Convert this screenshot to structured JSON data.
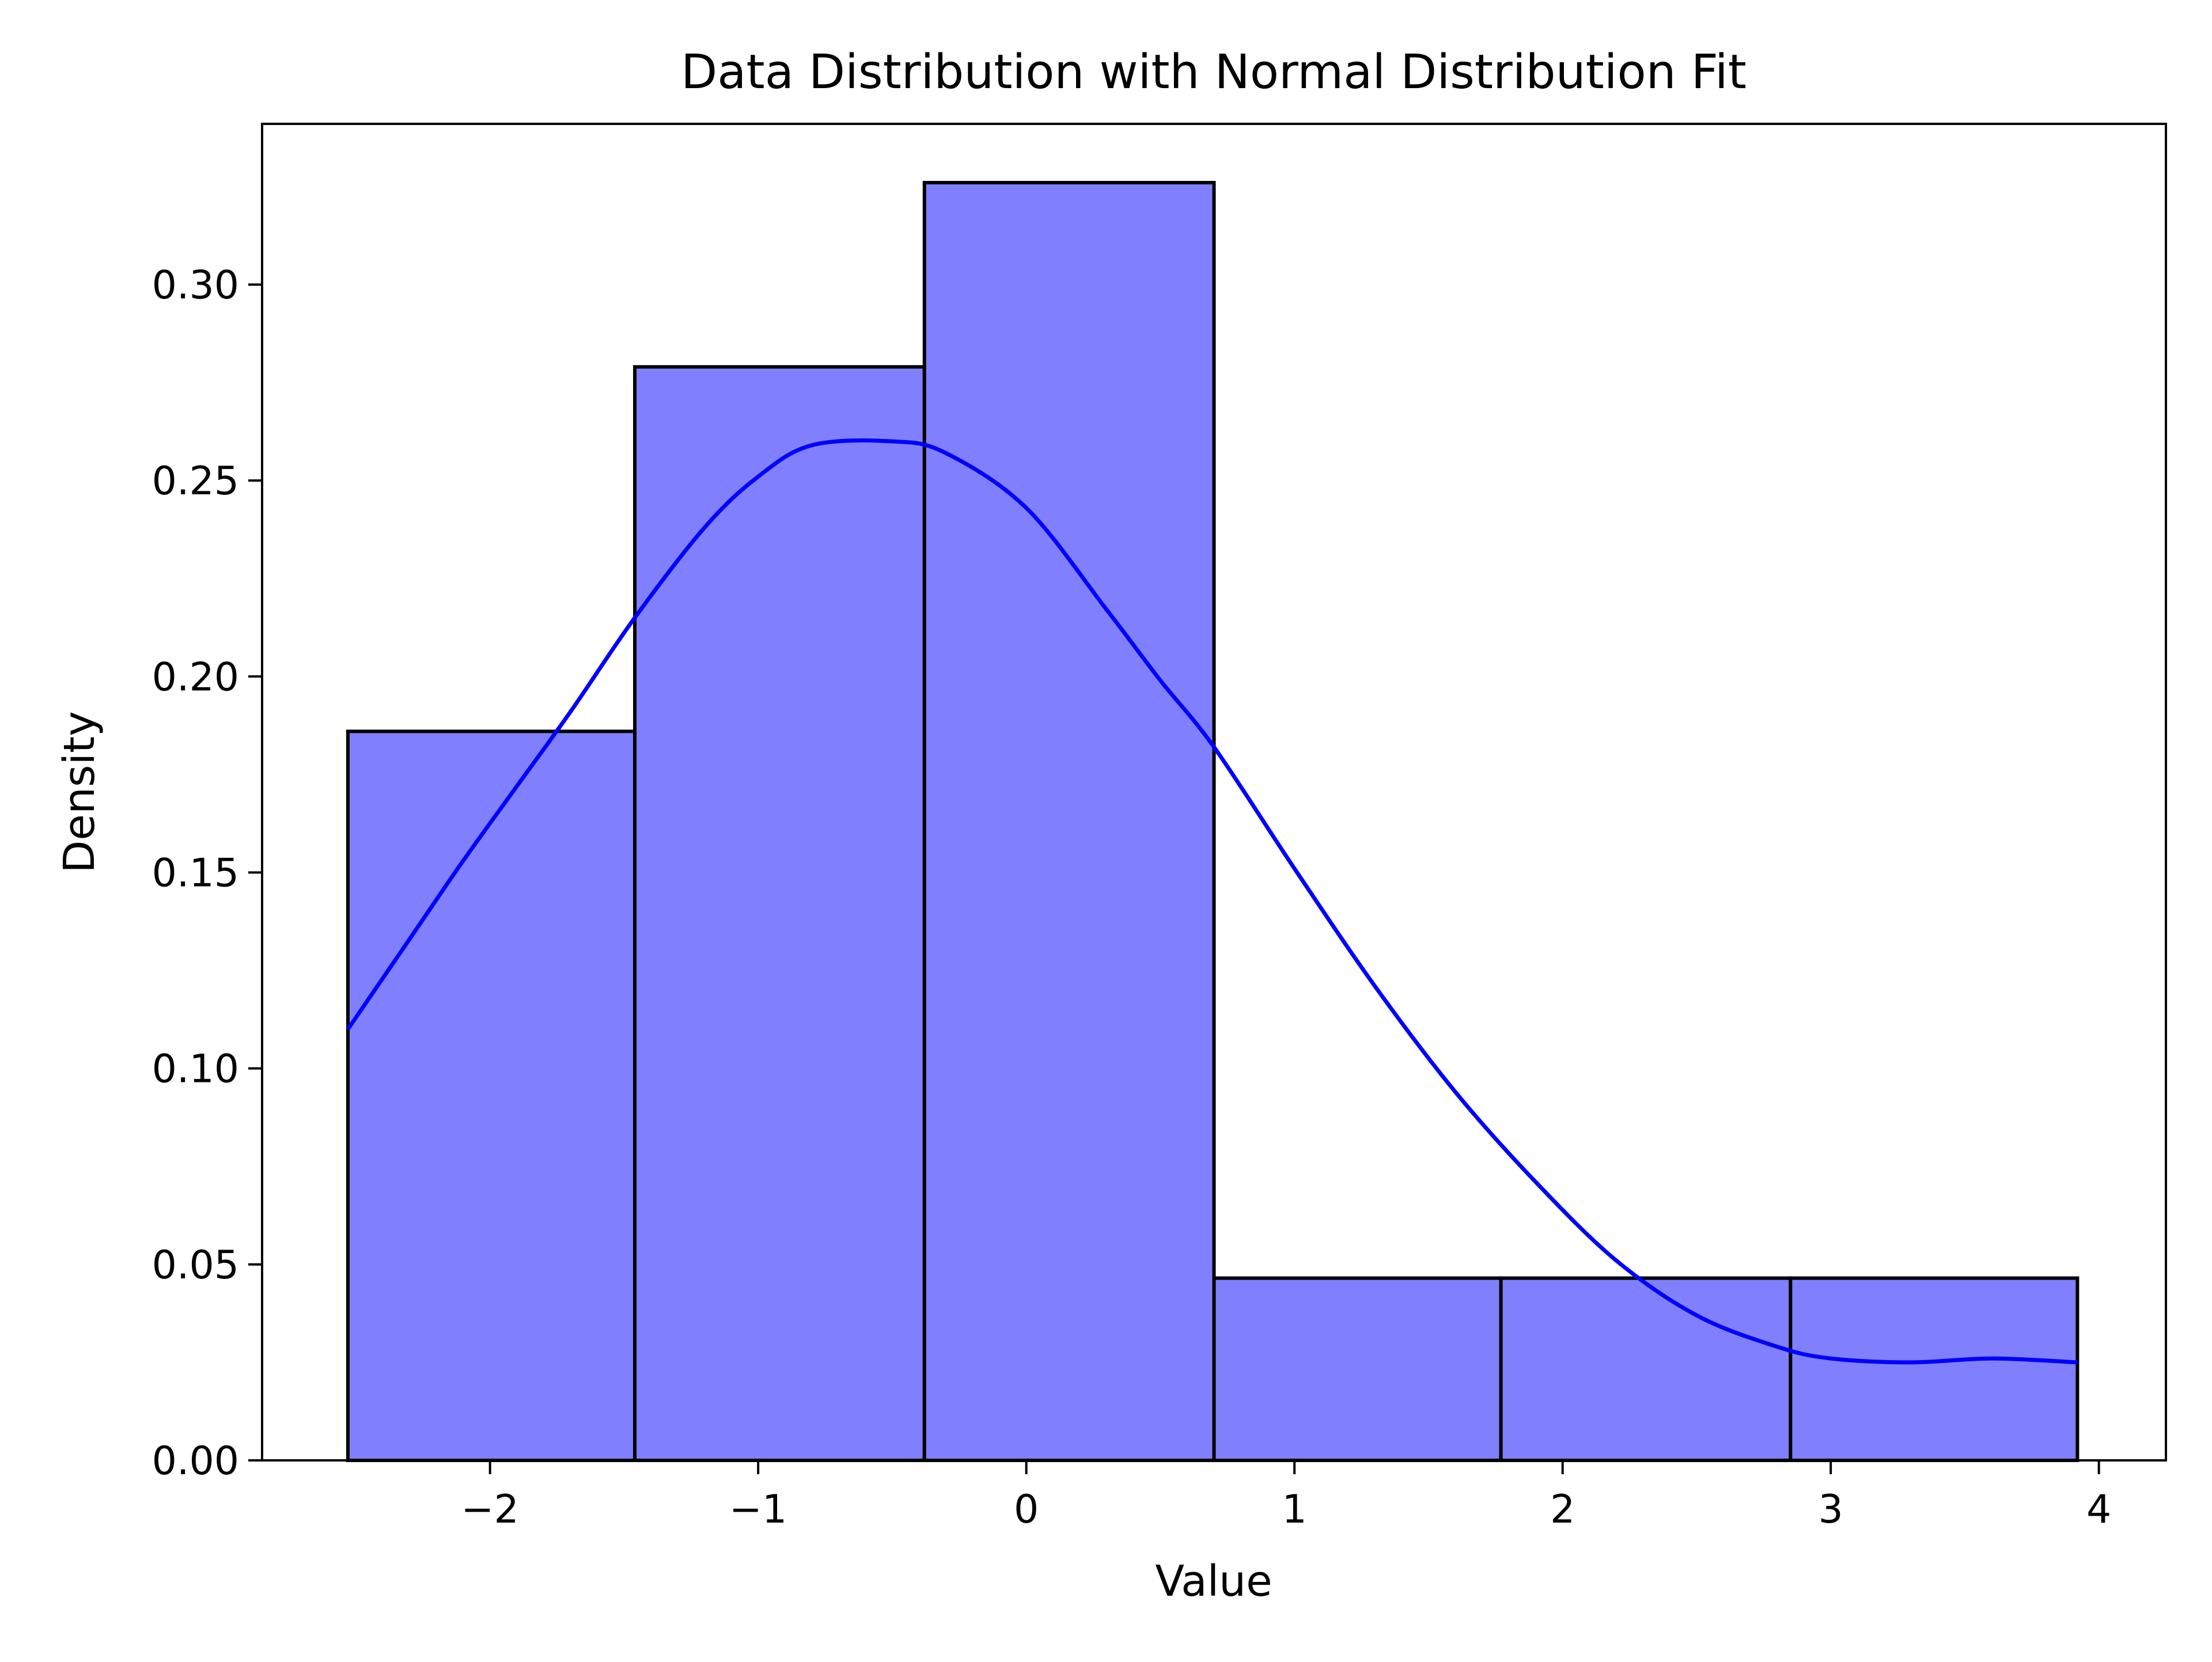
{
  "chart_data": {
    "type": "bar",
    "title": "Data Distribution with Normal Distribution Fit",
    "xlabel": "Value",
    "ylabel": "Density",
    "xlim": [
      -2.85,
      4.25
    ],
    "ylim": [
      0,
      0.341
    ],
    "x_ticks": [
      -2,
      -1,
      0,
      1,
      2,
      3,
      4
    ],
    "x_tick_labels": [
      "−2",
      "−1",
      "0",
      "1",
      "2",
      "3",
      "4"
    ],
    "y_ticks": [
      0,
      0.05,
      0.1,
      0.15,
      0.2,
      0.25,
      0.3
    ],
    "y_tick_labels": [
      "0.00",
      "0.05",
      "0.10",
      "0.15",
      "0.20",
      "0.25",
      "0.30"
    ],
    "grid": false,
    "bins": [
      {
        "start": -2.53,
        "end": -1.46,
        "value": 0.186
      },
      {
        "start": -1.46,
        "end": -0.38,
        "value": 0.279
      },
      {
        "start": -0.38,
        "end": 0.7,
        "value": 0.326
      },
      {
        "start": 0.7,
        "end": 1.77,
        "value": 0.0465
      },
      {
        "start": 1.77,
        "end": 2.85,
        "value": 0.0465
      },
      {
        "start": 2.85,
        "end": 3.92,
        "value": 0.0465
      }
    ],
    "curve": {
      "x": [
        -2.53,
        -2.3,
        -2.1,
        -1.9,
        -1.7,
        -1.46,
        -1.2,
        -1.0,
        -0.8,
        -0.5,
        -0.3,
        0.0,
        0.3,
        0.5,
        0.7,
        1.0,
        1.3,
        1.6,
        1.9,
        2.2,
        2.5,
        2.8,
        3.0,
        3.3,
        3.6,
        3.92
      ],
      "y": [
        0.11,
        0.133,
        0.153,
        0.172,
        0.191,
        0.215,
        0.238,
        0.251,
        0.259,
        0.26,
        0.257,
        0.243,
        0.217,
        0.199,
        0.182,
        0.151,
        0.121,
        0.094,
        0.071,
        0.051,
        0.037,
        0.029,
        0.026,
        0.025,
        0.026,
        0.025
      ]
    },
    "colors": {
      "bar_fill": "#8080ff",
      "bar_edge": "#000000",
      "curve": "#0000ff"
    }
  }
}
